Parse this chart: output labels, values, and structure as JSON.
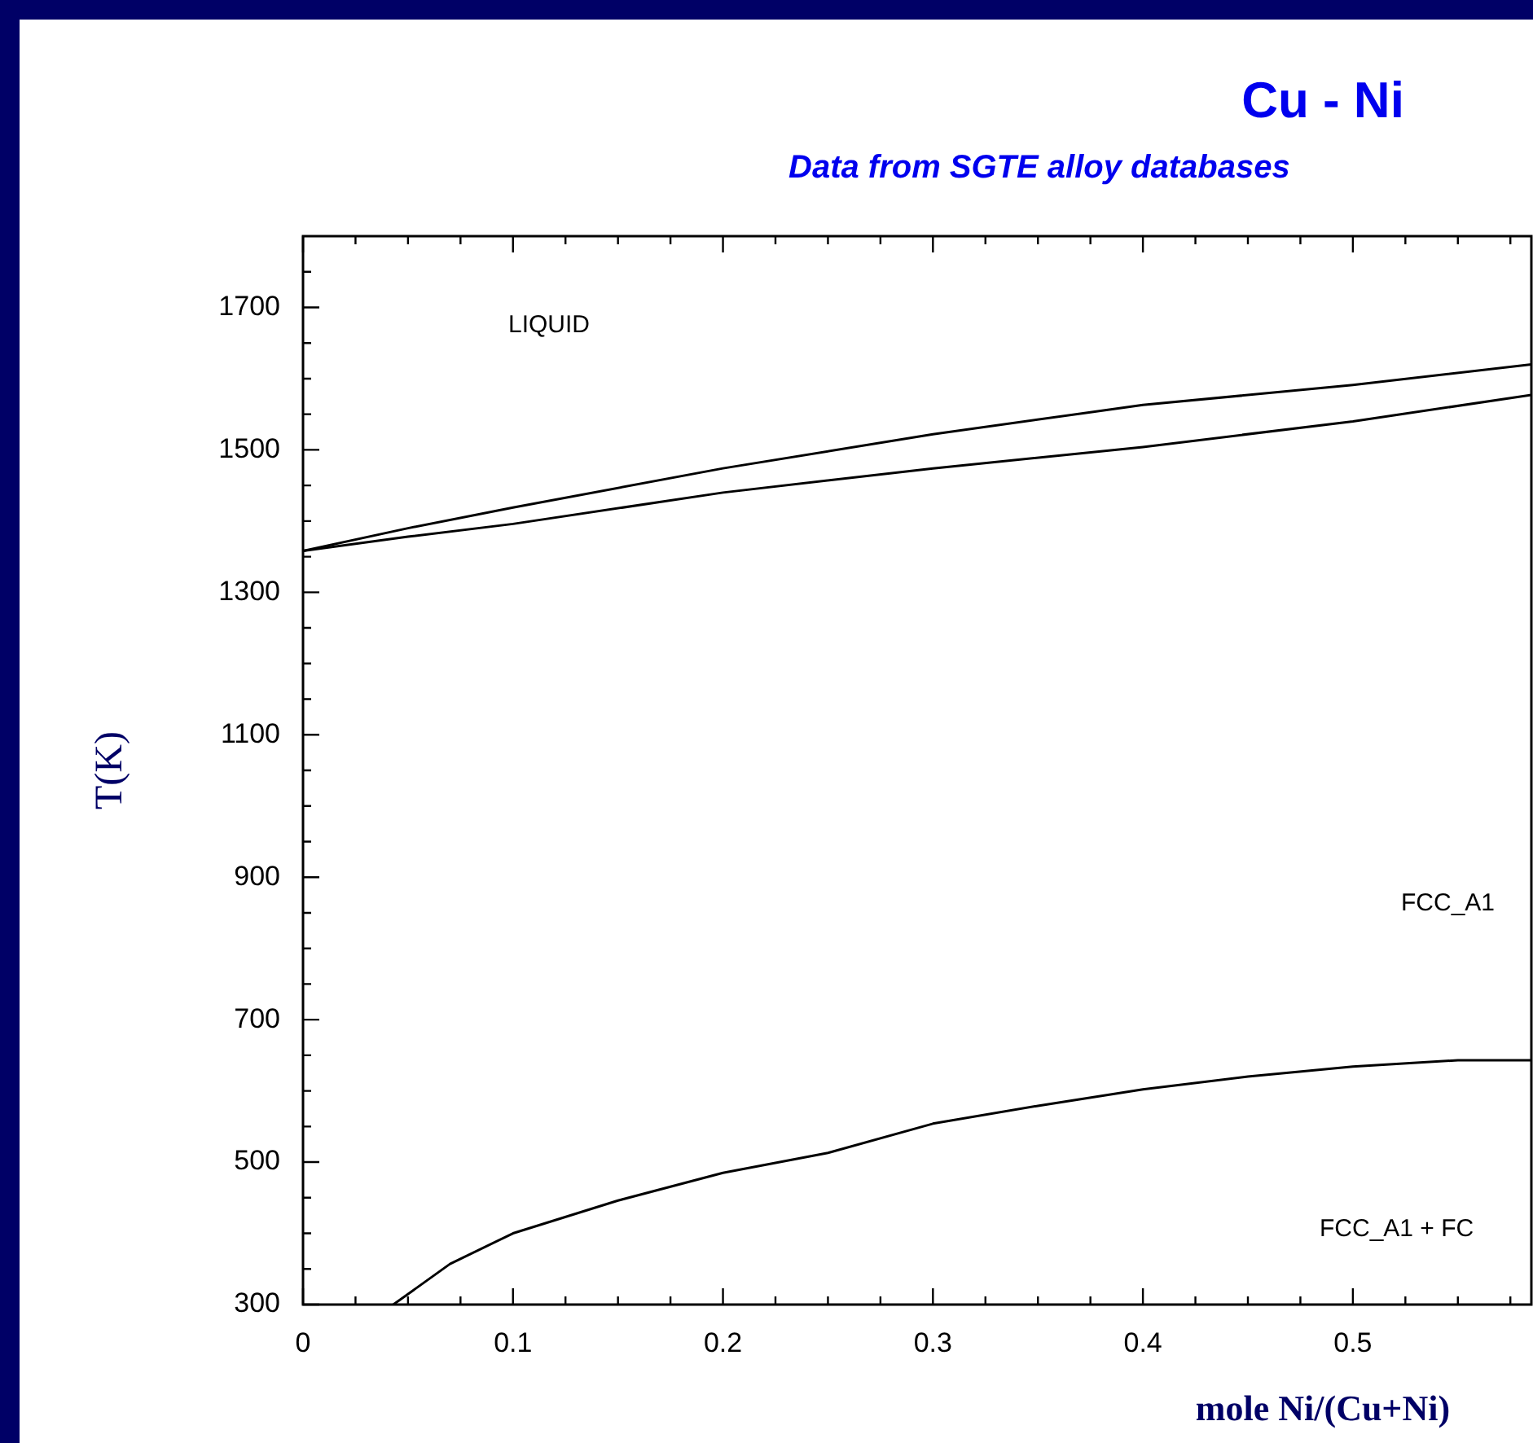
{
  "chart_data": {
    "type": "line",
    "title": "Cu - Ni",
    "subtitle": "Data from SGTE alloy databases",
    "xlabel": "mole Ni/(Cu+Ni)",
    "ylabel": "T(K)",
    "xlim": [
      0,
      0.585
    ],
    "xticks": [
      0,
      0.1,
      0.2,
      0.3,
      0.4,
      0.5
    ],
    "ylim": [
      300,
      1800
    ],
    "yticks": [
      300,
      500,
      700,
      900,
      1100,
      1300,
      1500,
      1700
    ],
    "grid": false,
    "legend": false,
    "marker": "none",
    "line_style": "solid",
    "series": [
      {
        "color": "#000000",
        "x": [
          0,
          0.05,
          0.1,
          0.2,
          0.3,
          0.4,
          0.5,
          0.585
        ],
        "values": [
          1358,
          1390,
          1419,
          1474,
          1522,
          1563,
          1591,
          1620
        ]
      },
      {
        "color": "#000000",
        "x": [
          0,
          0.05,
          0.1,
          0.2,
          0.3,
          0.4,
          0.5,
          0.585
        ],
        "values": [
          1358,
          1378,
          1396,
          1440,
          1474,
          1504,
          1540,
          1577
        ]
      },
      {
        "color": "#000000",
        "x": [
          0.043,
          0.07,
          0.1,
          0.15,
          0.2,
          0.25,
          0.3,
          0.35,
          0.4,
          0.45,
          0.5,
          0.55,
          0.585
        ],
        "values": [
          300,
          357,
          400,
          446,
          485,
          513,
          554,
          579,
          602,
          620,
          634,
          643,
          643
        ]
      }
    ],
    "annotations": [
      "LIQUID",
      "FCC_A1",
      "FCC_A1 + FC"
    ]
  }
}
